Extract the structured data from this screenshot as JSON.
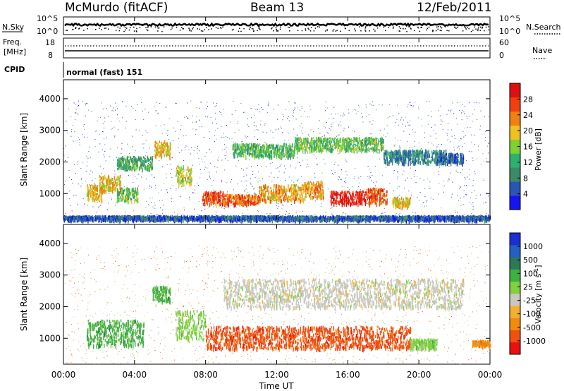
{
  "header": {
    "station": "McMurdo (fitACF)",
    "beam": "Beam 13",
    "date": "12/Feb/2011"
  },
  "strip_labels": {
    "nsky": "N.Sky",
    "nsearch": "N.Search",
    "freq": "Freq.",
    "freq_unit": "[MHz]",
    "nave": "Nave",
    "cpid": "CPID",
    "cpid_value": "normal (fast) 151"
  },
  "strips": {
    "noise_left_ticks": [
      "10^5",
      "10^0"
    ],
    "noise_right_ticks": [
      "10^5",
      "10^0"
    ],
    "freq_left_ticks": [
      "18",
      "8"
    ],
    "freq_right_ticks": [
      "60",
      "0"
    ]
  },
  "colors": {
    "power": [
      "#1515f0",
      "#2a55b5",
      "#3d8a6a",
      "#2fb070",
      "#7fd030",
      "#f0c020",
      "#f08010",
      "#f04010",
      "#e01010"
    ],
    "velocity": [
      "#e81010",
      "#f05010",
      "#f08a10",
      "#f2b030",
      "#c8c8c0",
      "#80d040",
      "#40b040",
      "#2c7a55",
      "#2560c0",
      "#1a30d0"
    ]
  },
  "chart_data": [
    {
      "type": "heatmap",
      "title": "",
      "xlabel": "",
      "ylabel": "Slant Range [km]",
      "x_ticks": [
        "00:00",
        "04:00",
        "08:00",
        "12:00",
        "16:00",
        "20:00",
        "00:00"
      ],
      "y_ticks": [
        1000,
        2000,
        3000,
        4000
      ],
      "ylim": [
        180,
        4600
      ],
      "colorbar": {
        "label": "Power [dB]",
        "ticks": [
          4,
          8,
          12,
          16,
          20,
          24,
          28
        ],
        "range": [
          0,
          32
        ]
      },
      "regions": [
        {
          "t": [
            1.3,
            2.2
          ],
          "r": [
            800,
            1300
          ],
          "level": 20
        },
        {
          "t": [
            2.0,
            3.2
          ],
          "r": [
            1100,
            1600
          ],
          "level": 20
        },
        {
          "t": [
            3.0,
            4.2
          ],
          "r": [
            800,
            1200
          ],
          "level": 14
        },
        {
          "t": [
            5.1,
            6.0
          ],
          "r": [
            2200,
            2700
          ],
          "level": 20
        },
        {
          "t": [
            6.3,
            7.2
          ],
          "r": [
            1300,
            1900
          ],
          "level": 18
        },
        {
          "t": [
            7.8,
            9.0
          ],
          "r": [
            700,
            1100
          ],
          "level": 26
        },
        {
          "t": [
            9.0,
            11.0
          ],
          "r": [
            700,
            1000
          ],
          "level": 25
        },
        {
          "t": [
            11.0,
            13.5
          ],
          "r": [
            800,
            1300
          ],
          "level": 22
        },
        {
          "t": [
            13.5,
            14.6
          ],
          "r": [
            900,
            1400
          ],
          "level": 22
        },
        {
          "t": [
            15.0,
            17.0
          ],
          "r": [
            700,
            1100
          ],
          "level": 30
        },
        {
          "t": [
            17.0,
            18.2
          ],
          "r": [
            700,
            1200
          ],
          "level": 26
        },
        {
          "t": [
            18.5,
            19.5
          ],
          "r": [
            600,
            900
          ],
          "level": 20
        },
        {
          "t": [
            3.0,
            5.0
          ],
          "r": [
            1800,
            2200
          ],
          "level": 12
        },
        {
          "t": [
            9.5,
            13.0
          ],
          "r": [
            2200,
            2600
          ],
          "level": 13
        },
        {
          "t": [
            13.0,
            18.0
          ],
          "r": [
            2400,
            2800
          ],
          "level": 14
        },
        {
          "t": [
            18.0,
            21.5
          ],
          "r": [
            2000,
            2400
          ],
          "level": 9
        },
        {
          "t": [
            21.0,
            22.5
          ],
          "r": [
            2000,
            2300
          ],
          "level": 6
        },
        {
          "t": [
            0.0,
            24.0
          ],
          "r": [
            200,
            320
          ],
          "level": 6
        }
      ]
    },
    {
      "type": "heatmap",
      "title": "",
      "xlabel": "Time UT",
      "ylabel": "Slant Range [km]",
      "x_ticks": [
        "00:00",
        "04:00",
        "08:00",
        "12:00",
        "16:00",
        "20:00",
        "00:00"
      ],
      "y_ticks": [
        1000,
        2000,
        3000,
        4000
      ],
      "ylim": [
        180,
        4600
      ],
      "colorbar": {
        "label": "Velocity [m s^-1]",
        "ticks": [
          1000,
          500,
          100,
          25,
          -25,
          -100,
          -500,
          -1000
        ]
      },
      "regions": [
        {
          "t": [
            1.3,
            4.5
          ],
          "r": [
            800,
            1600
          ],
          "level": "100..500"
        },
        {
          "t": [
            5.0,
            6.0
          ],
          "r": [
            2200,
            2700
          ],
          "level": "100..500"
        },
        {
          "t": [
            6.3,
            8.0
          ],
          "r": [
            1000,
            1900
          ],
          "level": "25..100"
        },
        {
          "t": [
            8.0,
            13.5
          ],
          "r": [
            700,
            1400
          ],
          "level": "-500..-100"
        },
        {
          "t": [
            13.5,
            19.5
          ],
          "r": [
            700,
            1400
          ],
          "level": "-500..-100"
        },
        {
          "t": [
            9.0,
            22.5
          ],
          "r": [
            2000,
            2900
          ],
          "level": "-25..25"
        },
        {
          "t": [
            19.5,
            21.0
          ],
          "r": [
            700,
            1000
          ],
          "level": "25..100"
        },
        {
          "t": [
            23.0,
            24.0
          ],
          "r": [
            800,
            950
          ],
          "level": "-100..-25"
        }
      ]
    }
  ],
  "axes": {
    "xlabel": "Time UT"
  }
}
